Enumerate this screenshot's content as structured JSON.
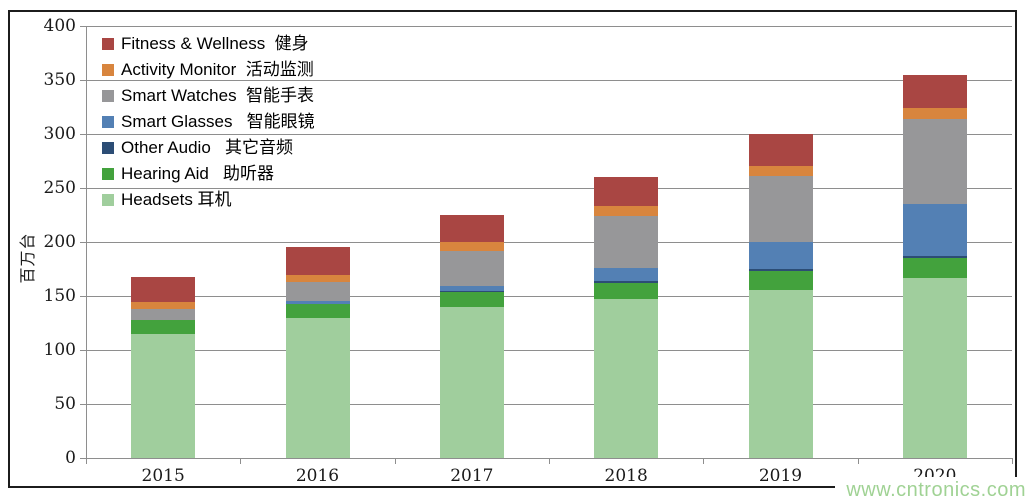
{
  "watermark": "www.cntronics.com",
  "chart_data": {
    "type": "bar",
    "stacked": true,
    "ylabel": "百万台",
    "ylim": [
      0,
      400
    ],
    "ytick_step": 50,
    "grid": true,
    "legend_position": "top-left-inside",
    "categories": [
      "2015",
      "2016",
      "2017",
      "2018",
      "2019",
      "2020"
    ],
    "series": [
      {
        "name": "Headsets 耳机",
        "color": "#a0ce9d",
        "values": [
          115,
          130,
          140,
          147,
          156,
          167
        ]
      },
      {
        "name": "Hearing Aid   助听器",
        "color": "#43a23d",
        "values": [
          13,
          13,
          14,
          15,
          17,
          18
        ]
      },
      {
        "name": "Other Audio   其它音频",
        "color": "#2c4d75",
        "values": [
          0,
          0,
          1,
          2,
          2,
          2
        ]
      },
      {
        "name": "Smart Glasses   智能眼镜",
        "color": "#5380b4",
        "values": [
          0,
          2,
          4,
          12,
          25,
          48
        ]
      },
      {
        "name": "Smart Watches  智能手表",
        "color": "#979799",
        "values": [
          10,
          18,
          33,
          48,
          61,
          79
        ]
      },
      {
        "name": "Activity Monitor  活动监测",
        "color": "#d8853e",
        "values": [
          6,
          6,
          8,
          9,
          9,
          10
        ]
      },
      {
        "name": "Fitness & Wellness  健身",
        "color": "#a94643",
        "values": [
          24,
          26,
          25,
          27,
          30,
          31
        ]
      }
    ],
    "totals": [
      168,
      195,
      225,
      260,
      300,
      355
    ]
  },
  "axis_tick_labels": [
    "0",
    "50",
    "100",
    "150",
    "200",
    "250",
    "300",
    "350",
    "400"
  ]
}
